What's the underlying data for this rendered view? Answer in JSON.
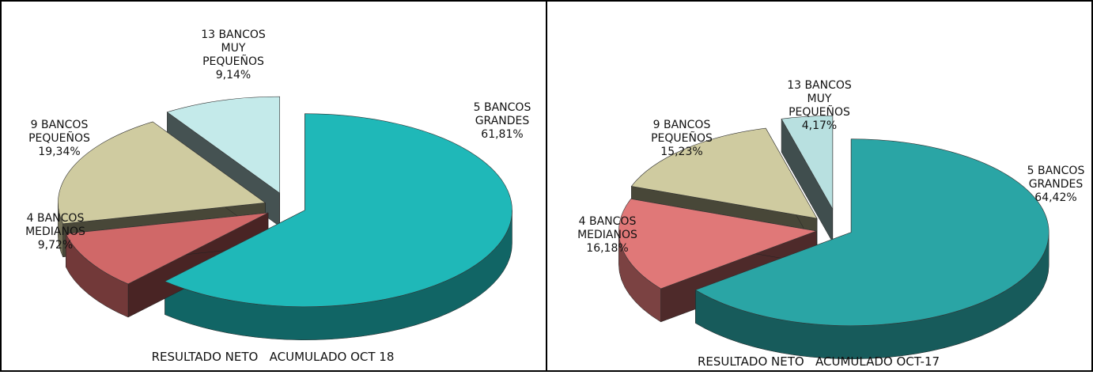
{
  "chart_data": [
    {
      "type": "pie",
      "title": "RESULTADO NETO   ACUMULADO OCT 18",
      "categories": [
        "5 BANCOS GRANDES",
        "4 BANCOS MEDIANOS",
        "9 BANCOS PEQUEÑOS",
        "13 BANCOS MUY PEQUEÑOS"
      ],
      "values": [
        61.81,
        9.72,
        19.34,
        9.14
      ],
      "value_labels": [
        "61,81%",
        "9,72%",
        "19,34%",
        "9,14%"
      ],
      "colors": [
        "#1fb8b8",
        "#d06868",
        "#cfcba0",
        "#c4eaea"
      ]
    },
    {
      "type": "pie",
      "title": "RESULTADO NETO   ACUMULADO OCT-17",
      "categories": [
        "5 BANCOS GRANDES",
        "4 BANCOS MEDIANOS",
        "9 BANCOS PEQUEÑOS",
        "13 BANCOS MUY PEQUEÑOS"
      ],
      "values": [
        64.42,
        16.18,
        15.23,
        4.17
      ],
      "value_labels": [
        "64,42%",
        "16,18%",
        "15,23%",
        "4,17%"
      ],
      "colors": [
        "#2aa5a5",
        "#e07878",
        "#cfcba0",
        "#b8e0e0"
      ]
    }
  ]
}
